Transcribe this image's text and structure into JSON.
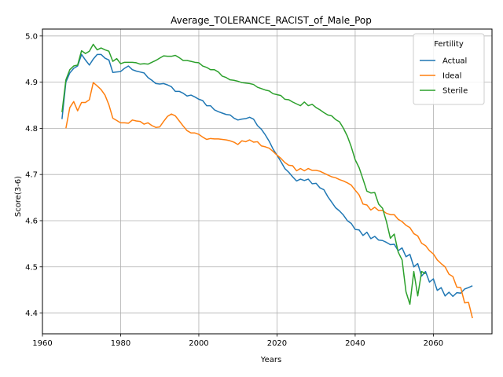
{
  "chart_data": {
    "type": "line",
    "title": "Average_TOLERANCE_RACIST_of_Male_Pop",
    "xlabel": "Years",
    "ylabel": "Score(3-6)",
    "xlim": [
      1960,
      2075
    ],
    "ylim": [
      4.355,
      5.015
    ],
    "xticks": [
      1960,
      1980,
      2000,
      2020,
      2040,
      2060
    ],
    "yticks": [
      4.4,
      4.5,
      4.6,
      4.7,
      4.8,
      4.9,
      5.0
    ],
    "grid": true,
    "legend": {
      "title": "Fertility",
      "placement": "top-right"
    },
    "series": [
      {
        "name": "Actual",
        "color": "#1f77b4",
        "points": [
          [
            1965,
            4.82
          ],
          [
            1966,
            4.9
          ],
          [
            1967,
            4.92
          ],
          [
            1968,
            4.93
          ],
          [
            1969,
            4.935
          ],
          [
            1970,
            4.96
          ],
          [
            1971,
            4.948
          ],
          [
            1972,
            4.937
          ],
          [
            1973,
            4.95
          ],
          [
            1974,
            4.96
          ],
          [
            1975,
            4.96
          ],
          [
            1976,
            4.952
          ],
          [
            1977,
            4.948
          ],
          [
            1978,
            4.921
          ],
          [
            1979,
            4.922
          ],
          [
            1980,
            4.923
          ],
          [
            1981,
            4.93
          ],
          [
            1982,
            4.935
          ],
          [
            1983,
            4.927
          ],
          [
            1984,
            4.924
          ],
          [
            1985,
            4.922
          ],
          [
            1986,
            4.92
          ],
          [
            1987,
            4.91
          ],
          [
            1988,
            4.904
          ],
          [
            1989,
            4.897
          ],
          [
            1990,
            4.896
          ],
          [
            1991,
            4.897
          ],
          [
            1992,
            4.894
          ],
          [
            1993,
            4.89
          ],
          [
            1994,
            4.88
          ],
          [
            1995,
            4.88
          ],
          [
            1996,
            4.876
          ],
          [
            1997,
            4.87
          ],
          [
            1998,
            4.872
          ],
          [
            1999,
            4.868
          ],
          [
            2000,
            4.863
          ],
          [
            2001,
            4.86
          ],
          [
            2002,
            4.849
          ],
          [
            2003,
            4.849
          ],
          [
            2004,
            4.84
          ],
          [
            2005,
            4.836
          ],
          [
            2006,
            4.833
          ],
          [
            2007,
            4.83
          ],
          [
            2008,
            4.829
          ],
          [
            2009,
            4.822
          ],
          [
            2010,
            4.818
          ],
          [
            2011,
            4.82
          ],
          [
            2012,
            4.821
          ],
          [
            2013,
            4.824
          ],
          [
            2014,
            4.82
          ],
          [
            2015,
            4.806
          ],
          [
            2016,
            4.798
          ],
          [
            2017,
            4.786
          ],
          [
            2018,
            4.772
          ],
          [
            2019,
            4.755
          ],
          [
            2020,
            4.742
          ],
          [
            2021,
            4.728
          ],
          [
            2022,
            4.713
          ],
          [
            2023,
            4.705
          ],
          [
            2024,
            4.695
          ],
          [
            2025,
            4.686
          ],
          [
            2026,
            4.69
          ],
          [
            2027,
            4.687
          ],
          [
            2028,
            4.69
          ],
          [
            2029,
            4.68
          ],
          [
            2030,
            4.681
          ],
          [
            2031,
            4.671
          ],
          [
            2032,
            4.667
          ],
          [
            2033,
            4.652
          ],
          [
            2034,
            4.64
          ],
          [
            2035,
            4.628
          ],
          [
            2036,
            4.621
          ],
          [
            2037,
            4.612
          ],
          [
            2038,
            4.6
          ],
          [
            2039,
            4.594
          ],
          [
            2040,
            4.581
          ],
          [
            2041,
            4.58
          ],
          [
            2042,
            4.568
          ],
          [
            2043,
            4.575
          ],
          [
            2044,
            4.561
          ],
          [
            2045,
            4.566
          ],
          [
            2046,
            4.558
          ],
          [
            2047,
            4.557
          ],
          [
            2048,
            4.553
          ],
          [
            2049,
            4.548
          ],
          [
            2050,
            4.549
          ],
          [
            2051,
            4.535
          ],
          [
            2052,
            4.541
          ],
          [
            2053,
            4.522
          ],
          [
            2054,
            4.527
          ],
          [
            2055,
            4.5
          ],
          [
            2056,
            4.507
          ],
          [
            2057,
            4.48
          ],
          [
            2058,
            4.49
          ],
          [
            2059,
            4.467
          ],
          [
            2060,
            4.474
          ],
          [
            2061,
            4.449
          ],
          [
            2062,
            4.455
          ],
          [
            2063,
            4.437
          ],
          [
            2064,
            4.445
          ],
          [
            2065,
            4.436
          ],
          [
            2066,
            4.444
          ],
          [
            2067,
            4.443
          ],
          [
            2068,
            4.452
          ],
          [
            2069,
            4.455
          ],
          [
            2070,
            4.459
          ]
        ]
      },
      {
        "name": "Ideal",
        "color": "#ff7f0e",
        "points": [
          [
            1966,
            4.8
          ],
          [
            1967,
            4.845
          ],
          [
            1968,
            4.858
          ],
          [
            1969,
            4.838
          ],
          [
            1970,
            4.856
          ],
          [
            1971,
            4.856
          ],
          [
            1972,
            4.862
          ],
          [
            1973,
            4.899
          ],
          [
            1974,
            4.892
          ],
          [
            1975,
            4.884
          ],
          [
            1976,
            4.872
          ],
          [
            1977,
            4.851
          ],
          [
            1978,
            4.822
          ],
          [
            1979,
            4.817
          ],
          [
            1980,
            4.812
          ],
          [
            1981,
            4.812
          ],
          [
            1982,
            4.811
          ],
          [
            1983,
            4.818
          ],
          [
            1984,
            4.816
          ],
          [
            1985,
            4.815
          ],
          [
            1986,
            4.809
          ],
          [
            1987,
            4.812
          ],
          [
            1988,
            4.806
          ],
          [
            1989,
            4.802
          ],
          [
            1990,
            4.803
          ],
          [
            1991,
            4.815
          ],
          [
            1992,
            4.826
          ],
          [
            1993,
            4.831
          ],
          [
            1994,
            4.827
          ],
          [
            1995,
            4.816
          ],
          [
            1996,
            4.805
          ],
          [
            1997,
            4.795
          ],
          [
            1998,
            4.79
          ],
          [
            1999,
            4.79
          ],
          [
            2000,
            4.787
          ],
          [
            2001,
            4.781
          ],
          [
            2002,
            4.776
          ],
          [
            2003,
            4.778
          ],
          [
            2004,
            4.777
          ],
          [
            2005,
            4.777
          ],
          [
            2006,
            4.776
          ],
          [
            2007,
            4.775
          ],
          [
            2008,
            4.773
          ],
          [
            2009,
            4.77
          ],
          [
            2010,
            4.765
          ],
          [
            2011,
            4.773
          ],
          [
            2012,
            4.771
          ],
          [
            2013,
            4.775
          ],
          [
            2014,
            4.77
          ],
          [
            2015,
            4.771
          ],
          [
            2016,
            4.762
          ],
          [
            2017,
            4.76
          ],
          [
            2018,
            4.757
          ],
          [
            2019,
            4.75
          ],
          [
            2020,
            4.742
          ],
          [
            2021,
            4.735
          ],
          [
            2022,
            4.726
          ],
          [
            2023,
            4.72
          ],
          [
            2024,
            4.719
          ],
          [
            2025,
            4.708
          ],
          [
            2026,
            4.713
          ],
          [
            2027,
            4.708
          ],
          [
            2028,
            4.713
          ],
          [
            2029,
            4.709
          ],
          [
            2030,
            4.709
          ],
          [
            2031,
            4.707
          ],
          [
            2032,
            4.703
          ],
          [
            2033,
            4.699
          ],
          [
            2034,
            4.695
          ],
          [
            2035,
            4.693
          ],
          [
            2036,
            4.689
          ],
          [
            2037,
            4.686
          ],
          [
            2038,
            4.682
          ],
          [
            2039,
            4.677
          ],
          [
            2040,
            4.666
          ],
          [
            2041,
            4.656
          ],
          [
            2042,
            4.636
          ],
          [
            2043,
            4.634
          ],
          [
            2044,
            4.623
          ],
          [
            2045,
            4.629
          ],
          [
            2046,
            4.622
          ],
          [
            2047,
            4.622
          ],
          [
            2048,
            4.616
          ],
          [
            2049,
            4.613
          ],
          [
            2050,
            4.613
          ],
          [
            2051,
            4.603
          ],
          [
            2052,
            4.598
          ],
          [
            2053,
            4.59
          ],
          [
            2054,
            4.585
          ],
          [
            2055,
            4.572
          ],
          [
            2056,
            4.567
          ],
          [
            2057,
            4.551
          ],
          [
            2058,
            4.546
          ],
          [
            2059,
            4.535
          ],
          [
            2060,
            4.528
          ],
          [
            2061,
            4.515
          ],
          [
            2062,
            4.507
          ],
          [
            2063,
            4.5
          ],
          [
            2064,
            4.484
          ],
          [
            2065,
            4.479
          ],
          [
            2066,
            4.456
          ],
          [
            2067,
            4.455
          ],
          [
            2068,
            4.422
          ],
          [
            2069,
            4.423
          ],
          [
            2070,
            4.389
          ]
        ]
      },
      {
        "name": "Sterile",
        "color": "#2ca02c",
        "points": [
          [
            1965,
            4.835
          ],
          [
            1966,
            4.905
          ],
          [
            1967,
            4.927
          ],
          [
            1968,
            4.935
          ],
          [
            1969,
            4.937
          ],
          [
            1970,
            4.968
          ],
          [
            1971,
            4.962
          ],
          [
            1972,
            4.967
          ],
          [
            1973,
            4.982
          ],
          [
            1974,
            4.97
          ],
          [
            1975,
            4.974
          ],
          [
            1976,
            4.97
          ],
          [
            1977,
            4.967
          ],
          [
            1978,
            4.945
          ],
          [
            1979,
            4.951
          ],
          [
            1980,
            4.94
          ],
          [
            1981,
            4.943
          ],
          [
            1982,
            4.943
          ],
          [
            1983,
            4.943
          ],
          [
            1984,
            4.942
          ],
          [
            1985,
            4.939
          ],
          [
            1986,
            4.94
          ],
          [
            1987,
            4.939
          ],
          [
            1988,
            4.943
          ],
          [
            1989,
            4.947
          ],
          [
            1990,
            4.952
          ],
          [
            1991,
            4.957
          ],
          [
            1992,
            4.956
          ],
          [
            1993,
            4.956
          ],
          [
            1994,
            4.958
          ],
          [
            1995,
            4.953
          ],
          [
            1996,
            4.947
          ],
          [
            1997,
            4.947
          ],
          [
            1998,
            4.945
          ],
          [
            1999,
            4.943
          ],
          [
            2000,
            4.942
          ],
          [
            2001,
            4.935
          ],
          [
            2002,
            4.932
          ],
          [
            2003,
            4.927
          ],
          [
            2004,
            4.927
          ],
          [
            2005,
            4.922
          ],
          [
            2006,
            4.913
          ],
          [
            2007,
            4.91
          ],
          [
            2008,
            4.905
          ],
          [
            2009,
            4.904
          ],
          [
            2010,
            4.902
          ],
          [
            2011,
            4.899
          ],
          [
            2012,
            4.898
          ],
          [
            2013,
            4.897
          ],
          [
            2014,
            4.895
          ],
          [
            2015,
            4.889
          ],
          [
            2016,
            4.886
          ],
          [
            2017,
            4.883
          ],
          [
            2018,
            4.881
          ],
          [
            2019,
            4.875
          ],
          [
            2020,
            4.873
          ],
          [
            2021,
            4.871
          ],
          [
            2022,
            4.863
          ],
          [
            2023,
            4.862
          ],
          [
            2024,
            4.857
          ],
          [
            2025,
            4.853
          ],
          [
            2026,
            4.849
          ],
          [
            2027,
            4.857
          ],
          [
            2028,
            4.849
          ],
          [
            2029,
            4.852
          ],
          [
            2030,
            4.845
          ],
          [
            2031,
            4.84
          ],
          [
            2032,
            4.834
          ],
          [
            2033,
            4.829
          ],
          [
            2034,
            4.827
          ],
          [
            2035,
            4.819
          ],
          [
            2036,
            4.814
          ],
          [
            2037,
            4.8
          ],
          [
            2038,
            4.783
          ],
          [
            2039,
            4.76
          ],
          [
            2040,
            4.732
          ],
          [
            2041,
            4.715
          ],
          [
            2042,
            4.69
          ],
          [
            2043,
            4.664
          ],
          [
            2044,
            4.66
          ],
          [
            2045,
            4.661
          ],
          [
            2046,
            4.636
          ],
          [
            2047,
            4.627
          ],
          [
            2048,
            4.598
          ],
          [
            2049,
            4.562
          ],
          [
            2050,
            4.571
          ],
          [
            2051,
            4.532
          ],
          [
            2052,
            4.515
          ],
          [
            2053,
            4.446
          ],
          [
            2054,
            4.419
          ],
          [
            2055,
            4.49
          ],
          [
            2056,
            4.437
          ],
          [
            2057,
            4.49
          ],
          [
            2058,
            4.485
          ]
        ]
      }
    ]
  }
}
